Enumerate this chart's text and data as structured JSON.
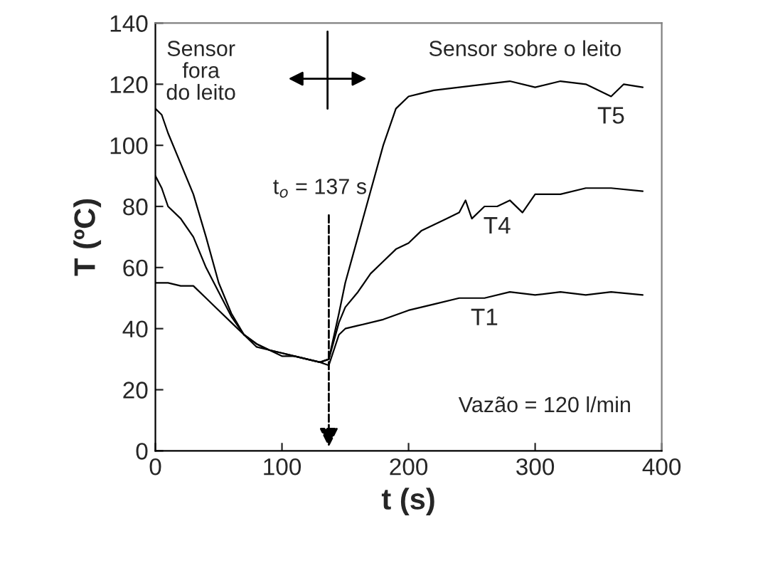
{
  "chart_data": {
    "type": "line",
    "xlabel": "t (s)",
    "ylabel": "T (ºC)",
    "xlim": [
      0,
      400
    ],
    "xticks": [
      0,
      100,
      200,
      300,
      400
    ],
    "ylim": [
      0,
      140
    ],
    "yticks": [
      0,
      20,
      40,
      60,
      80,
      100,
      120,
      140
    ],
    "grid": false,
    "legend": false,
    "marker": "none",
    "line_style": "solid",
    "series": [
      {
        "name": "T5",
        "color": "#000000",
        "x": [
          0,
          5,
          10,
          20,
          30,
          40,
          50,
          60,
          70,
          80,
          90,
          100,
          110,
          120,
          130,
          137,
          145,
          150,
          160,
          170,
          180,
          190,
          200,
          210,
          220,
          240,
          260,
          280,
          300,
          320,
          340,
          360,
          370,
          385
        ],
        "values": [
          112,
          110,
          104,
          94,
          84,
          70,
          55,
          45,
          38,
          35,
          33,
          32,
          31,
          30,
          29,
          30,
          45,
          55,
          70,
          85,
          100,
          112,
          116,
          117,
          118,
          119,
          120,
          121,
          119,
          121,
          120,
          116,
          120,
          119
        ]
      },
      {
        "name": "T4",
        "color": "#000000",
        "x": [
          0,
          5,
          10,
          20,
          30,
          40,
          50,
          60,
          70,
          80,
          90,
          100,
          110,
          120,
          130,
          137,
          145,
          150,
          160,
          170,
          180,
          190,
          200,
          210,
          220,
          230,
          240,
          245,
          250,
          260,
          270,
          280,
          290,
          300,
          320,
          340,
          360,
          385
        ],
        "values": [
          90,
          86,
          80,
          76,
          70,
          60,
          52,
          44,
          38,
          34,
          33,
          31,
          31,
          30,
          29,
          30,
          42,
          47,
          52,
          58,
          62,
          66,
          68,
          72,
          74,
          76,
          78,
          82,
          76,
          80,
          80,
          82,
          78,
          84,
          84,
          86,
          86,
          85
        ]
      },
      {
        "name": "T1",
        "color": "#000000",
        "x": [
          0,
          10,
          20,
          30,
          40,
          50,
          60,
          70,
          80,
          90,
          100,
          110,
          120,
          130,
          137,
          145,
          150,
          160,
          180,
          200,
          220,
          240,
          260,
          280,
          300,
          320,
          340,
          360,
          385
        ],
        "values": [
          55,
          55,
          54,
          54,
          50,
          46,
          42,
          38,
          35,
          33,
          32,
          31,
          30,
          29,
          28,
          38,
          40,
          41,
          43,
          46,
          48,
          50,
          50,
          52,
          51,
          52,
          51,
          52,
          51
        ]
      }
    ],
    "annotations": [
      "t$_{o}$ = 137 s",
      "Sensor\nfora\ndo leito",
      "Sensor sobre o leito",
      "Vazão = 120 l/min"
    ]
  }
}
